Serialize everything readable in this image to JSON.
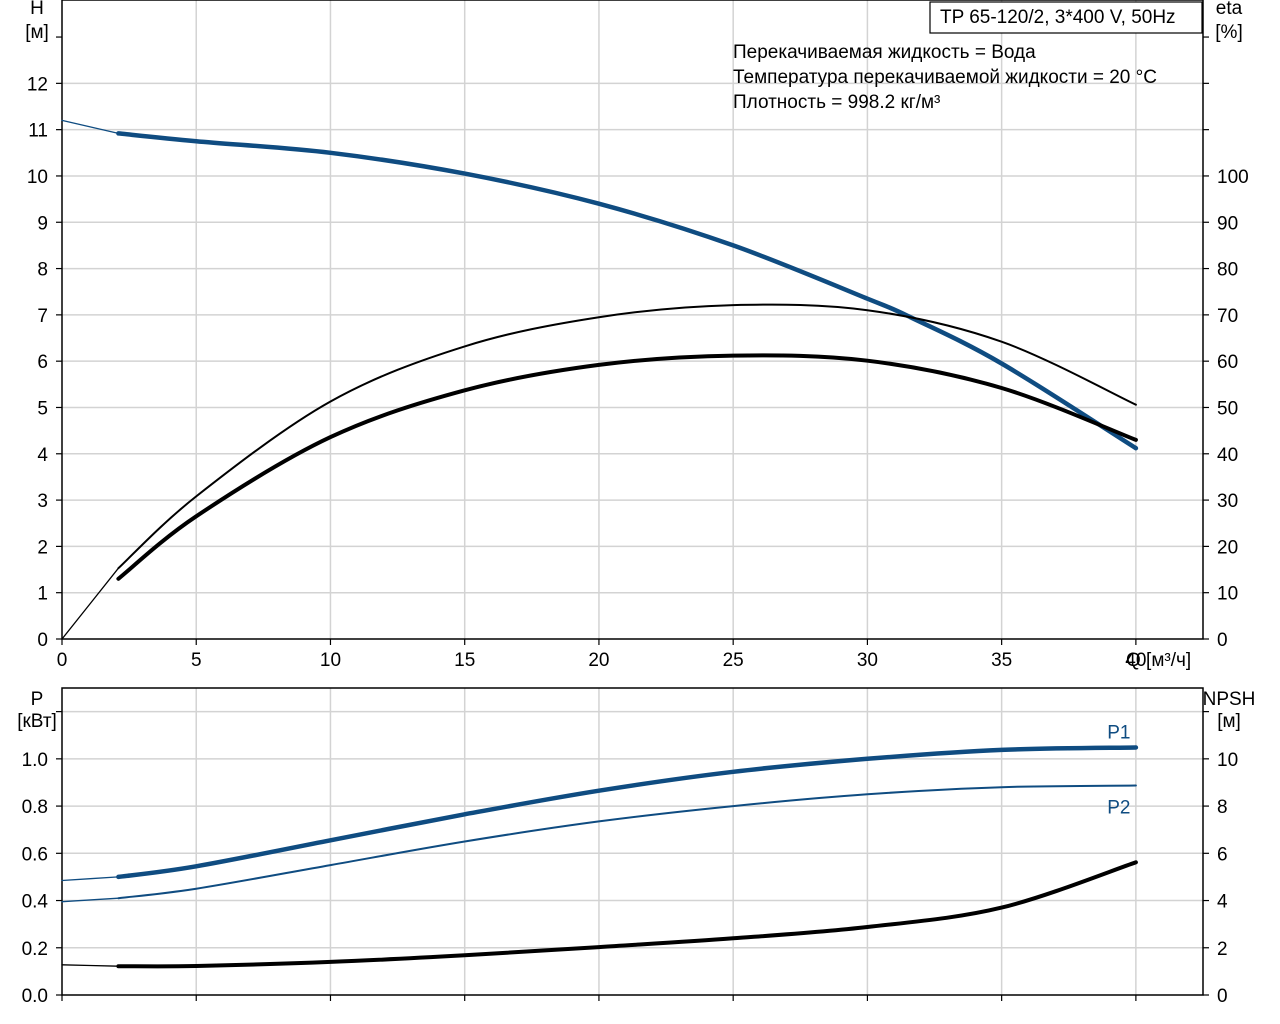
{
  "header": {
    "title": "TP 65-120/2, 3*400 V, 50Hz",
    "info_lines": [
      "Перекачиваемая жидкость = Вода",
      "Температура перекачиваемой жидкости = 20 °C",
      "Плотность = 998.2 кг/м³"
    ]
  },
  "colors": {
    "blue": "#0f4c81",
    "black": "#000000",
    "grid": "#d3d3d3"
  },
  "chart_data": [
    {
      "type": "line",
      "xlabel": "Q [м³/ч]",
      "ylabel": [
        "H",
        "[м]"
      ],
      "ylabel_right": [
        "eta",
        "[%]"
      ],
      "xlim": [
        0,
        42.5
      ],
      "ylim": [
        0,
        13.8
      ],
      "ylim_right": [
        0,
        138
      ],
      "x_ticks": [
        0,
        5,
        10,
        15,
        20,
        25,
        30,
        35,
        40
      ],
      "y_ticks": [
        0,
        1,
        2,
        3,
        4,
        5,
        6,
        7,
        8,
        9,
        10,
        11,
        12
      ],
      "y_right_ticks": [
        0,
        10,
        20,
        30,
        40,
        50,
        60,
        70,
        80,
        90,
        100
      ],
      "grid": true,
      "series": [
        {
          "axis": "left",
          "color": "#0f4c81",
          "width": 4.5,
          "x": [
            2.1,
            5,
            10,
            15,
            20,
            25,
            30,
            31.6,
            35,
            40
          ],
          "y": [
            10.92,
            10.75,
            10.5,
            10.05,
            9.4,
            8.5,
            7.35,
            6.95,
            5.95,
            4.12
          ],
          "lead": {
            "x": [
              0,
              2.1
            ],
            "y": [
              11.2,
              10.92
            ]
          }
        },
        {
          "axis": "right",
          "color": "#000000",
          "width": 2,
          "x": [
            2.1,
            5,
            10,
            15,
            20,
            25,
            30,
            35,
            40
          ],
          "y": [
            15.3,
            30.8,
            51.3,
            63.2,
            69.5,
            72.1,
            71,
            64.2,
            50.6
          ],
          "lead": {
            "x": [
              0,
              2.1
            ],
            "y": [
              0,
              15.3
            ]
          }
        },
        {
          "axis": "right",
          "color": "#000000",
          "width": 4,
          "x": [
            2.1,
            5,
            10,
            15,
            20,
            25,
            30,
            35,
            40
          ],
          "y": [
            13,
            26.5,
            43.6,
            53.7,
            59.2,
            61.2,
            60.1,
            54.2,
            43
          ]
        }
      ]
    },
    {
      "type": "line",
      "ylabel": [
        "P",
        "[кВт]"
      ],
      "ylabel_right": [
        "NPSH",
        "[м]"
      ],
      "xlim": [
        0,
        42.5
      ],
      "ylim": [
        0,
        1.3
      ],
      "ylim_right": [
        0,
        13
      ],
      "y_ticks": [
        0.0,
        0.2,
        0.4,
        0.6,
        0.8,
        1.0
      ],
      "y_tick_labels": [
        "0.0",
        "0.2",
        "0.4",
        "0.6",
        "0.8",
        "1.0"
      ],
      "y_right_ticks": [
        0,
        2,
        4,
        6,
        8,
        10
      ],
      "grid": true,
      "series": [
        {
          "name": "P1",
          "axis": "left",
          "color": "#0f4c81",
          "width": 4.5,
          "x": [
            2.1,
            5,
            10,
            15,
            20,
            25,
            30,
            35,
            40
          ],
          "y": [
            0.5,
            0.545,
            0.655,
            0.765,
            0.865,
            0.945,
            1.0,
            1.038,
            1.048
          ],
          "lead": {
            "x": [
              0,
              2.1
            ],
            "y": [
              0.485,
              0.5
            ]
          }
        },
        {
          "name": "P2",
          "axis": "left",
          "color": "#0f4c81",
          "width": 2,
          "x": [
            2.1,
            5,
            10,
            15,
            20,
            25,
            30,
            35,
            40
          ],
          "y": [
            0.41,
            0.45,
            0.55,
            0.65,
            0.735,
            0.8,
            0.85,
            0.88,
            0.887
          ],
          "lead": {
            "x": [
              0,
              2.1
            ],
            "y": [
              0.395,
              0.41
            ]
          }
        },
        {
          "axis": "right",
          "color": "#000000",
          "width": 4,
          "x": [
            2.1,
            5,
            10,
            15,
            20,
            25,
            30,
            35,
            40
          ],
          "y": [
            1.22,
            1.23,
            1.4,
            1.68,
            2.03,
            2.4,
            2.88,
            3.7,
            5.62
          ],
          "lead": {
            "x": [
              0,
              2.1
            ],
            "y": [
              1.28,
              1.22
            ]
          }
        }
      ]
    }
  ]
}
